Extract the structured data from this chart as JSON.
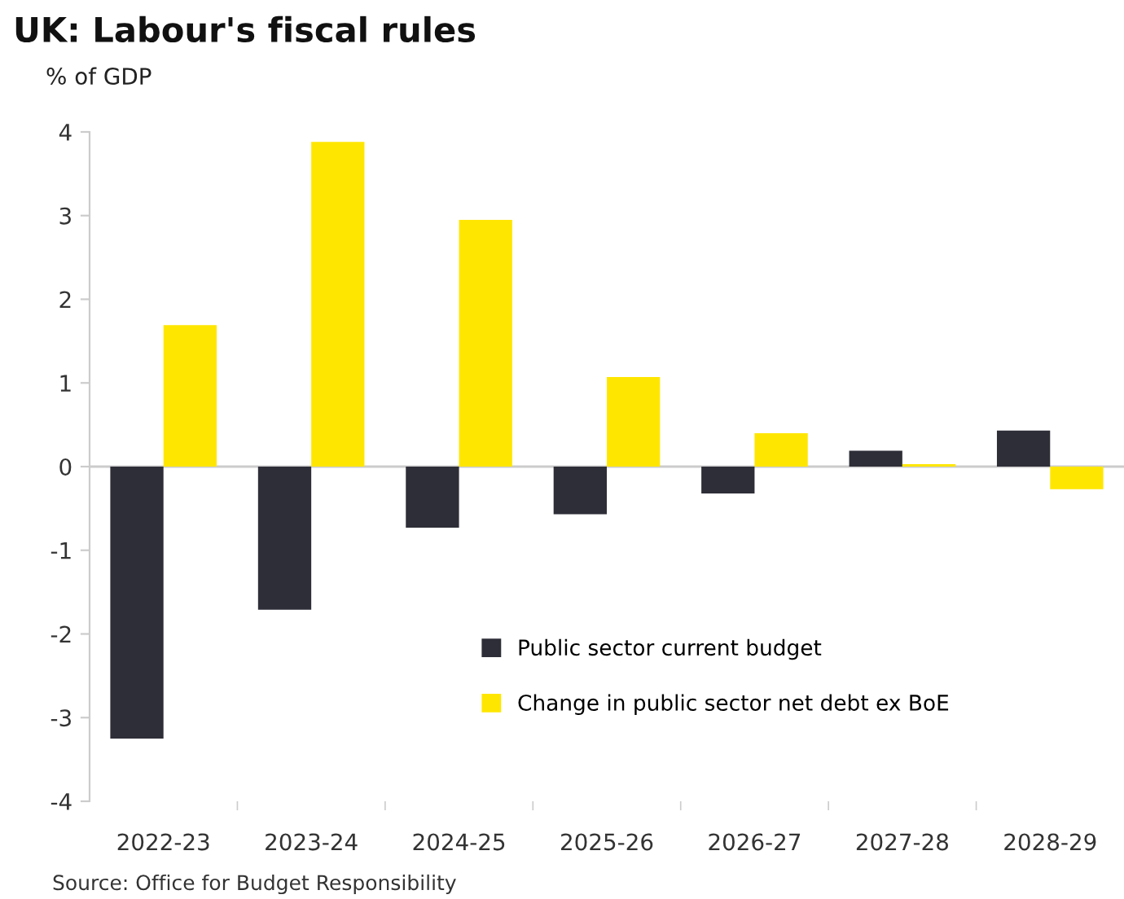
{
  "chart_data": {
    "type": "bar",
    "title": "UK: Labour's fiscal rules",
    "ylabel": "% of GDP",
    "categories": [
      "2022-23",
      "2023-24",
      "2024-25",
      "2025-26",
      "2026-27",
      "2027-28",
      "2028-29"
    ],
    "series": [
      {
        "name": "Public sector current budget",
        "color": "#2e2e38",
        "values": [
          -3.25,
          -1.71,
          -0.73,
          -0.57,
          -0.32,
          0.19,
          0.43
        ]
      },
      {
        "name": "Change in public sector net debt ex BoE",
        "color": "#ffe600",
        "values": [
          1.69,
          3.88,
          2.95,
          1.07,
          0.4,
          0.03,
          -0.27
        ]
      }
    ],
    "ylim": [
      -4,
      4
    ],
    "yticks": [
      {
        "value": -4,
        "label": "-4"
      },
      {
        "value": -3,
        "label": "-3"
      },
      {
        "value": -2,
        "label": "-2"
      },
      {
        "value": -1,
        "label": "-1"
      },
      0,
      1,
      2,
      3,
      4
    ],
    "grid": false,
    "legend": "bottom right",
    "ref_lines": [
      {
        "axis": "y",
        "value": 0,
        "color": "#cccccc"
      }
    ],
    "annotations": [
      "Source: Office for Budget Responsibility"
    ]
  }
}
